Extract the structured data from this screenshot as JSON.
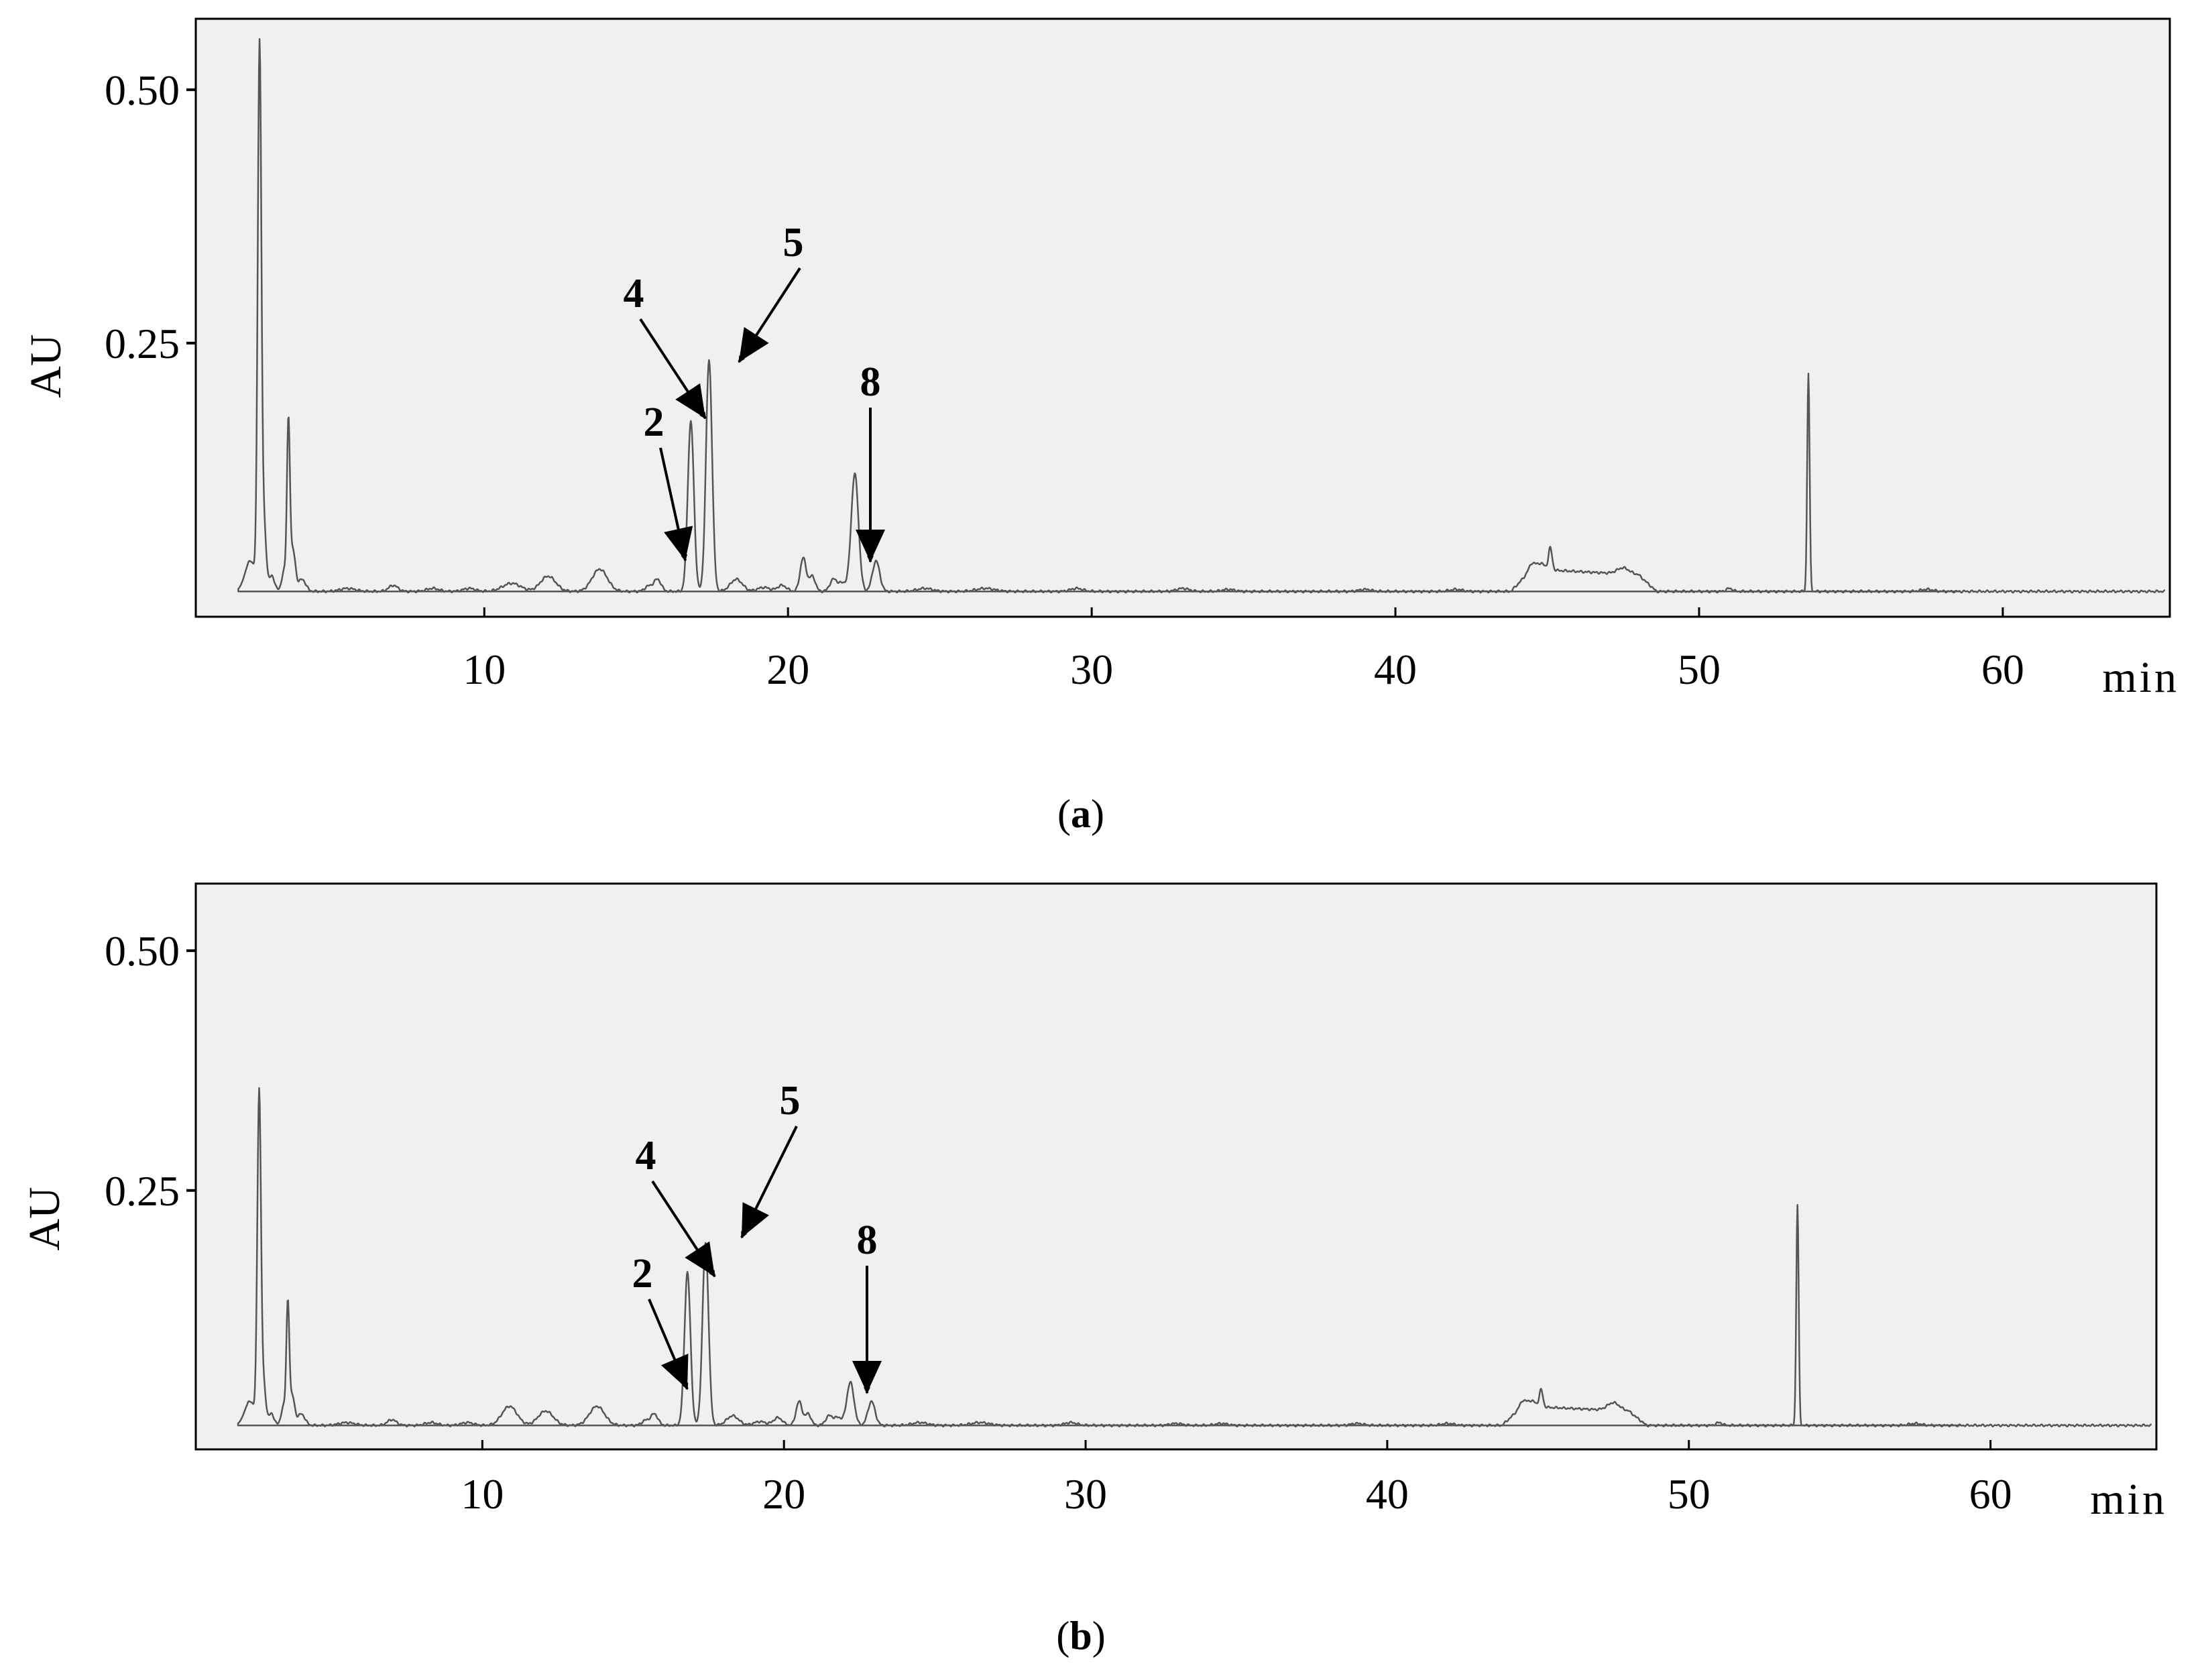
{
  "chart_data": [
    {
      "panel": "a",
      "caption": {
        "open": "(",
        "letter": "a",
        "close": ")"
      },
      "type": "line",
      "xlabel": "min",
      "ylabel": "AU",
      "xlim": [
        0.5,
        65.5
      ],
      "ylim": [
        -0.02,
        0.57
      ],
      "xticks": [
        10,
        20,
        30,
        40,
        50,
        60
      ],
      "yticks": [
        0.25,
        0.5
      ],
      "ytick_labels": [
        "0.25",
        "0.50"
      ],
      "grid": false,
      "baseline": 0.005,
      "line_color": "#555555",
      "background_color": "#f0f0f0",
      "peaks": [
        [
          2.3,
          0.03,
          0.18
        ],
        [
          2.6,
          0.532,
          0.06
        ],
        [
          2.75,
          0.06,
          0.07
        ],
        [
          3.0,
          0.015,
          0.1
        ],
        [
          3.4,
          0.02,
          0.07
        ],
        [
          3.55,
          0.165,
          0.05
        ],
        [
          3.7,
          0.04,
          0.08
        ],
        [
          4.0,
          0.012,
          0.12
        ],
        [
          5.5,
          0.003,
          0.25
        ],
        [
          7.0,
          0.006,
          0.15
        ],
        [
          8.3,
          0.003,
          0.2
        ],
        [
          9.5,
          0.003,
          0.2
        ],
        [
          10.9,
          0.008,
          0.3
        ],
        [
          12.1,
          0.015,
          0.25
        ],
        [
          13.8,
          0.022,
          0.25
        ],
        [
          15.4,
          0.005,
          0.12
        ],
        [
          15.7,
          0.012,
          0.12
        ],
        [
          16.8,
          0.168,
          0.1
        ],
        [
          17.4,
          0.228,
          0.1
        ],
        [
          18.3,
          0.012,
          0.2
        ],
        [
          19.2,
          0.004,
          0.2
        ],
        [
          19.8,
          0.006,
          0.15
        ],
        [
          20.5,
          0.033,
          0.1
        ],
        [
          20.8,
          0.015,
          0.1
        ],
        [
          21.5,
          0.012,
          0.12
        ],
        [
          21.8,
          0.008,
          0.12
        ],
        [
          22.2,
          0.116,
          0.12
        ],
        [
          22.9,
          0.03,
          0.12
        ],
        [
          24.5,
          0.003,
          0.25
        ],
        [
          26.5,
          0.003,
          0.3
        ],
        [
          29.5,
          0.003,
          0.2
        ],
        [
          33.0,
          0.003,
          0.2
        ],
        [
          34.5,
          0.002,
          0.2
        ],
        [
          39.0,
          0.002,
          0.2
        ],
        [
          42.0,
          0.002,
          0.2
        ],
        [
          44.5,
          0.006,
          0.12
        ],
        [
          44.8,
          0.006,
          0.12
        ],
        [
          45.1,
          0.022,
          0.06
        ],
        [
          47.5,
          0.006,
          0.2
        ],
        [
          51.0,
          0.003,
          0.1
        ],
        [
          53.6,
          0.215,
          0.04
        ],
        [
          57.5,
          0.002,
          0.2
        ]
      ],
      "plateaus": [
        [
          43.8,
          44.5,
          48.0,
          48.6,
          0.022
        ]
      ],
      "annotations": [
        {
          "label": "2",
          "x": 15.5
        },
        {
          "label": "4",
          "x": 16.7
        },
        {
          "label": "5",
          "x": 17.4
        },
        {
          "label": "8",
          "x": 21.6
        }
      ]
    },
    {
      "panel": "b",
      "caption": {
        "open": "(",
        "letter": "b",
        "close": ")"
      },
      "type": "line",
      "xlabel": "min",
      "ylabel": "AU",
      "xlim": [
        0.5,
        65.5
      ],
      "ylim": [
        -0.02,
        0.57
      ],
      "xticks": [
        10,
        20,
        30,
        40,
        50,
        60
      ],
      "yticks": [
        0.25,
        0.5
      ],
      "ytick_labels": [
        "0.25",
        "0.50"
      ],
      "grid": false,
      "baseline": 0.005,
      "line_color": "#555555",
      "background_color": "#f0f0f0",
      "peaks": [
        [
          2.3,
          0.025,
          0.18
        ],
        [
          2.6,
          0.342,
          0.06
        ],
        [
          2.75,
          0.04,
          0.07
        ],
        [
          3.0,
          0.012,
          0.1
        ],
        [
          3.4,
          0.02,
          0.07
        ],
        [
          3.55,
          0.125,
          0.05
        ],
        [
          3.7,
          0.03,
          0.08
        ],
        [
          4.0,
          0.012,
          0.12
        ],
        [
          5.5,
          0.003,
          0.25
        ],
        [
          7.0,
          0.006,
          0.15
        ],
        [
          8.3,
          0.003,
          0.2
        ],
        [
          9.5,
          0.003,
          0.2
        ],
        [
          10.9,
          0.02,
          0.25
        ],
        [
          12.1,
          0.015,
          0.25
        ],
        [
          13.8,
          0.02,
          0.25
        ],
        [
          15.4,
          0.005,
          0.12
        ],
        [
          15.7,
          0.012,
          0.12
        ],
        [
          16.8,
          0.16,
          0.1
        ],
        [
          17.4,
          0.19,
          0.1
        ],
        [
          18.3,
          0.01,
          0.2
        ],
        [
          19.2,
          0.004,
          0.2
        ],
        [
          19.8,
          0.008,
          0.15
        ],
        [
          20.5,
          0.025,
          0.1
        ],
        [
          20.8,
          0.012,
          0.1
        ],
        [
          21.5,
          0.01,
          0.12
        ],
        [
          21.8,
          0.008,
          0.12
        ],
        [
          22.2,
          0.045,
          0.12
        ],
        [
          22.9,
          0.025,
          0.12
        ],
        [
          24.5,
          0.003,
          0.25
        ],
        [
          26.5,
          0.003,
          0.3
        ],
        [
          29.5,
          0.003,
          0.2
        ],
        [
          33.0,
          0.002,
          0.2
        ],
        [
          34.5,
          0.002,
          0.2
        ],
        [
          39.0,
          0.002,
          0.2
        ],
        [
          42.0,
          0.002,
          0.2
        ],
        [
          44.5,
          0.006,
          0.12
        ],
        [
          44.8,
          0.006,
          0.12
        ],
        [
          45.1,
          0.018,
          0.06
        ],
        [
          47.5,
          0.008,
          0.2
        ],
        [
          51.0,
          0.003,
          0.1
        ],
        [
          53.6,
          0.23,
          0.04
        ],
        [
          57.5,
          0.002,
          0.2
        ]
      ],
      "plateaus": [
        [
          43.8,
          44.5,
          48.0,
          48.6,
          0.02
        ]
      ],
      "annotations": [
        {
          "label": "2",
          "x": 15.4
        },
        {
          "label": "4",
          "x": 16.5
        },
        {
          "label": "5",
          "x": 17.5
        },
        {
          "label": "8",
          "x": 21.3
        }
      ]
    }
  ]
}
